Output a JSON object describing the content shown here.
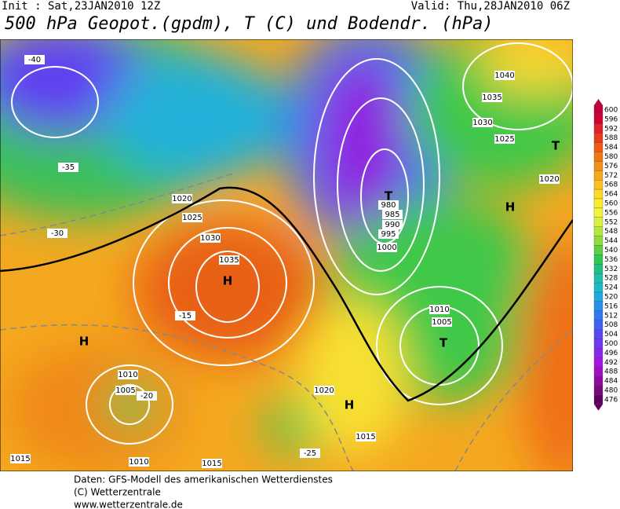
{
  "header": {
    "init": "Init : Sat,23JAN2010 12Z",
    "valid": "Valid: Thu,28JAN2010 06Z",
    "title": "500 hPa Geopot.(gpdm), T (C) und Bodendr. (hPa)"
  },
  "map": {
    "labels": [
      "H",
      "1035",
      "1030",
      "1025",
      "1020",
      "T",
      "980",
      "985",
      "990",
      "995",
      "1000",
      "H",
      "1010",
      "1005",
      "H",
      "1020",
      "1015",
      "T",
      "1010",
      "1005",
      "H",
      "T",
      "1040",
      "1035",
      "1030",
      "1025",
      "1020",
      "-15",
      "-20",
      "-25",
      "-30",
      "-35",
      "-40",
      "1015",
      "1010",
      "1015"
    ]
  },
  "legend": {
    "items": [
      {
        "value": 600,
        "color": "#c0003c"
      },
      {
        "value": 596,
        "color": "#d00030"
      },
      {
        "value": 592,
        "color": "#e0202a"
      },
      {
        "value": 588,
        "color": "#e83c1c"
      },
      {
        "value": 584,
        "color": "#f05a14"
      },
      {
        "value": 580,
        "color": "#f07814"
      },
      {
        "value": 576,
        "color": "#f09018"
      },
      {
        "value": 572,
        "color": "#f4a81c"
      },
      {
        "value": 568,
        "color": "#f8c020"
      },
      {
        "value": 564,
        "color": "#fcd828"
      },
      {
        "value": 560,
        "color": "#fcec2c"
      },
      {
        "value": 556,
        "color": "#f0f43c"
      },
      {
        "value": 552,
        "color": "#d8f040"
      },
      {
        "value": 548,
        "color": "#b4e840"
      },
      {
        "value": 544,
        "color": "#8cdc3c"
      },
      {
        "value": 540,
        "color": "#5cd040"
      },
      {
        "value": 536,
        "color": "#30c850"
      },
      {
        "value": 532,
        "color": "#20c080"
      },
      {
        "value": 528,
        "color": "#20c0a8"
      },
      {
        "value": 524,
        "color": "#20b8c8"
      },
      {
        "value": 520,
        "color": "#20a8e0"
      },
      {
        "value": 516,
        "color": "#2890e8"
      },
      {
        "value": 512,
        "color": "#3078f0"
      },
      {
        "value": 508,
        "color": "#4060f0"
      },
      {
        "value": 504,
        "color": "#5848f0"
      },
      {
        "value": 500,
        "color": "#7038f0"
      },
      {
        "value": 496,
        "color": "#8828e8"
      },
      {
        "value": 492,
        "color": "#a018e0"
      },
      {
        "value": 488,
        "color": "#a010c0"
      },
      {
        "value": 484,
        "color": "#9008a0"
      },
      {
        "value": 480,
        "color": "#780880"
      },
      {
        "value": 476,
        "color": "#600060"
      }
    ]
  },
  "footer": {
    "lines": [
      "Daten: GFS-Modell des amerikanischen Wetterdienstes",
      "(C) Wetterzentrale",
      "www.wetterzentrale.de"
    ]
  }
}
